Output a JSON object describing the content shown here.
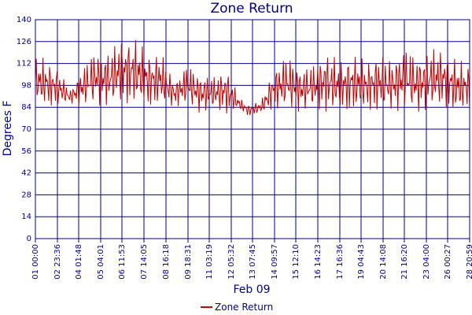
{
  "chart_data": {
    "type": "line",
    "title": "Zone Return",
    "xlabel": "Feb 09",
    "ylabel": "Degrees F",
    "ylim": [
      0,
      140
    ],
    "y_ticks": [
      "0",
      "14",
      "28",
      "42",
      "56",
      "70",
      "84",
      "98",
      "112",
      "126",
      "140"
    ],
    "x_ticks": [
      "01 00:00",
      "02 23:36",
      "04 01:48",
      "05 04:01",
      "06 11:53",
      "07 14:05",
      "08 16:18",
      "09 18:31",
      "11 03:19",
      "12 05:32",
      "13 07:45",
      "14 09:57",
      "15 12:10",
      "16 14:23",
      "17 16:36",
      "19 04:43",
      "20 14:08",
      "21 16:20",
      "23 04:00",
      "26 00:27",
      "28 20:59"
    ],
    "grid": true,
    "legend_position": "bottom-center",
    "colors": {
      "line": "#c00000",
      "grid": "#000080",
      "text": "#000080",
      "background": "#ffffff"
    },
    "series": [
      {
        "name": "Zone Return",
        "color": "#c00000",
        "profile": [
          [
            0.0,
            85,
            116
          ],
          [
            0.02,
            83,
            116
          ],
          [
            0.05,
            84,
            110
          ],
          [
            0.08,
            86,
            95
          ],
          [
            0.11,
            84,
            111
          ],
          [
            0.14,
            85,
            122
          ],
          [
            0.17,
            84,
            120
          ],
          [
            0.2,
            85,
            130
          ],
          [
            0.23,
            84,
            128
          ],
          [
            0.26,
            83,
            120
          ],
          [
            0.29,
            84,
            119
          ],
          [
            0.32,
            84,
            101
          ],
          [
            0.35,
            85,
            112
          ],
          [
            0.38,
            80,
            106
          ],
          [
            0.41,
            82,
            104
          ],
          [
            0.44,
            79,
            110
          ],
          [
            0.47,
            82,
            90
          ],
          [
            0.49,
            78,
            86
          ],
          [
            0.52,
            80,
            88
          ],
          [
            0.55,
            82,
            110
          ],
          [
            0.58,
            82,
            118
          ],
          [
            0.61,
            81,
            110
          ],
          [
            0.64,
            82,
            112
          ],
          [
            0.67,
            80,
            121
          ],
          [
            0.7,
            80,
            114
          ],
          [
            0.73,
            80,
            119
          ],
          [
            0.76,
            81,
            114
          ],
          [
            0.79,
            80,
            119
          ],
          [
            0.82,
            81,
            115
          ],
          [
            0.85,
            82,
            124
          ],
          [
            0.88,
            80,
            117
          ],
          [
            0.91,
            82,
            122
          ],
          [
            0.94,
            83,
            122
          ],
          [
            0.97,
            78,
            115
          ],
          [
            1.0,
            82,
            112
          ]
        ]
      }
    ]
  }
}
